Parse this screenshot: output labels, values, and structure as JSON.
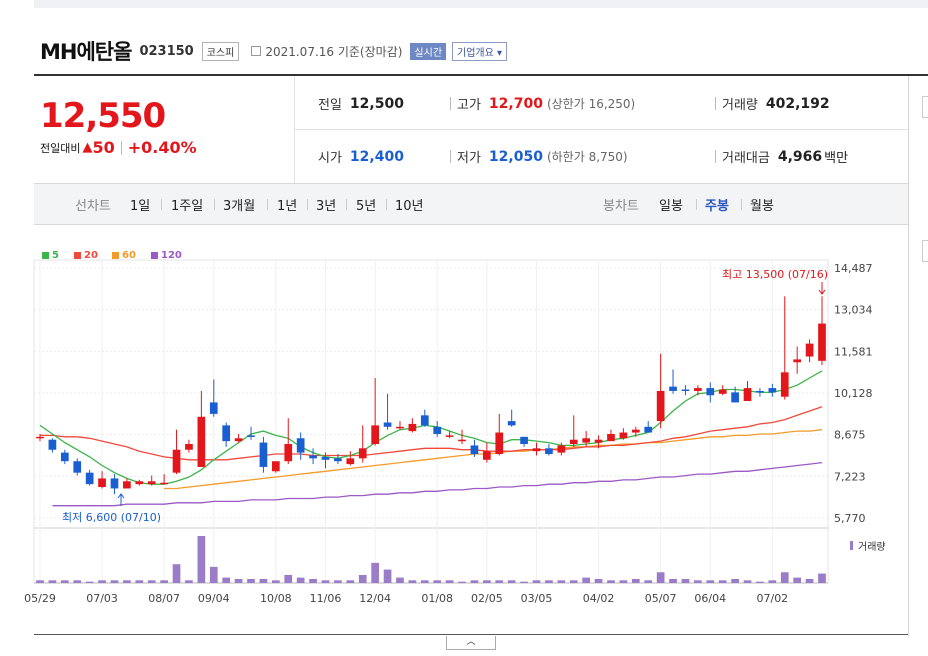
{
  "stock": {
    "name": "MH에탄올",
    "code": "023150",
    "market": "코스피",
    "date": "2021.07.16 기준(장마감)",
    "realtime_label": "실시간",
    "company_label": "기업개요"
  },
  "price": {
    "current": "12,550",
    "change_label": "전일대비",
    "change_arrow": "▲",
    "change_value": "50",
    "change_pct": "+0.40%"
  },
  "quote": {
    "prev_label": "전일",
    "prev_value": "12,500",
    "open_label": "시가",
    "open_value": "12,400",
    "high_label": "고가",
    "high_value": "12,700",
    "upper_limit": "(상한가 16,250)",
    "low_label": "저가",
    "low_value": "12,050",
    "lower_limit": "(하한가 8,750)",
    "volume_label": "거래량",
    "volume_value": "402,192",
    "amount_label": "거래대금",
    "amount_value": "4,966",
    "amount_unit": "백만"
  },
  "period_bar": {
    "line_label": "선차트",
    "line_items": [
      "1일",
      "1주일",
      "3개월",
      "1년",
      "3년",
      "5년",
      "10년"
    ],
    "candle_label": "봉차트",
    "candle_items": [
      "일봉",
      "주봉",
      "월봉"
    ],
    "active_candle": "주봉"
  },
  "colors": {
    "up": "#e3171b",
    "down": "#1a5fd1",
    "ma5": "#3ab54a",
    "ma20": "#ef4a3c",
    "ma60": "#f39b2b",
    "ma120": "#9b59c6",
    "volume": "#9b7cc9"
  },
  "chart_data": {
    "type": "candlestick",
    "ma_legend": [
      "5",
      "20",
      "60",
      "120"
    ],
    "y_ticks": [
      "14,487",
      "13,034",
      "11,581",
      "10,128",
      "8,675",
      "7,223",
      "5,770"
    ],
    "ylim": [
      5770,
      14487
    ],
    "x_ticks": [
      "05/29",
      "07/03",
      "08/07",
      "09/04",
      "10/08",
      "11/06",
      "12/04",
      "01/08",
      "02/05",
      "03/05",
      "04/02",
      "05/07",
      "06/04",
      "07/02"
    ],
    "max_annotation": "최고 13,500 (07/16)",
    "min_annotation": "최저 6,600 (07/10)",
    "volume_label": "거래량",
    "candles": [
      [
        8550,
        8700,
        8600,
        8450
      ],
      [
        8500,
        8550,
        8150,
        8050
      ],
      [
        8050,
        8150,
        7750,
        7650
      ],
      [
        7750,
        7850,
        7350,
        7250
      ],
      [
        7350,
        7450,
        6950,
        6900
      ],
      [
        6850,
        7400,
        7150,
        6800
      ],
      [
        7150,
        7300,
        6800,
        6600
      ],
      [
        6800,
        7150,
        7050,
        6800
      ],
      [
        6950,
        7100,
        7050,
        6900
      ],
      [
        6950,
        7250,
        7050,
        6900
      ],
      [
        7000,
        7300,
        7000,
        6950
      ],
      [
        7350,
        8850,
        8150,
        7300
      ],
      [
        8150,
        8500,
        8350,
        8050
      ],
      [
        7550,
        10200,
        9300,
        7550
      ],
      [
        9800,
        10600,
        9400,
        9300
      ],
      [
        9000,
        9100,
        8450,
        8250
      ],
      [
        8450,
        8700,
        8550,
        8400
      ],
      [
        8650,
        8950,
        8600,
        8500
      ],
      [
        8400,
        8600,
        7550,
        7350
      ],
      [
        7400,
        7700,
        7750,
        7350
      ],
      [
        7750,
        9250,
        8350,
        7650
      ],
      [
        8550,
        8750,
        8050,
        7800
      ],
      [
        7950,
        8200,
        7850,
        7650
      ],
      [
        7900,
        8050,
        7800,
        7500
      ],
      [
        7850,
        8000,
        7750,
        7650
      ],
      [
        7650,
        8100,
        7850,
        7600
      ],
      [
        7850,
        9000,
        8200,
        7700
      ],
      [
        8350,
        10650,
        9000,
        8300
      ],
      [
        9100,
        10100,
        8950,
        8850
      ],
      [
        8900,
        9150,
        8950,
        8850
      ],
      [
        8800,
        9250,
        9050,
        8750
      ],
      [
        9350,
        9550,
        9000,
        8950
      ],
      [
        8950,
        9150,
        8700,
        8600
      ],
      [
        8650,
        8800,
        8650,
        8550
      ],
      [
        8450,
        8850,
        8500,
        8350
      ],
      [
        8300,
        8500,
        8000,
        7900
      ],
      [
        7800,
        8400,
        8100,
        7700
      ],
      [
        8000,
        9400,
        8750,
        7950
      ],
      [
        9150,
        9550,
        9000,
        8950
      ],
      [
        8600,
        8600,
        8350,
        8250
      ],
      [
        8100,
        8400,
        8200,
        7950
      ],
      [
        8200,
        8350,
        8000,
        7950
      ],
      [
        8050,
        8400,
        8300,
        7950
      ],
      [
        8350,
        9350,
        8500,
        8250
      ],
      [
        8400,
        8800,
        8550,
        8250
      ],
      [
        8400,
        8650,
        8500,
        8200
      ],
      [
        8450,
        8850,
        8700,
        8450
      ],
      [
        8550,
        8900,
        8750,
        8500
      ],
      [
        8750,
        8950,
        8850,
        8600
      ],
      [
        8950,
        9150,
        8750,
        8750
      ],
      [
        9150,
        11500,
        10200,
        8900
      ],
      [
        10350,
        10950,
        10200,
        10100
      ],
      [
        10250,
        10400,
        10200,
        10050
      ],
      [
        10200,
        10400,
        10300,
        10050
      ],
      [
        10300,
        10500,
        10050,
        9800
      ],
      [
        10100,
        10400,
        10250,
        10050
      ],
      [
        10150,
        10350,
        9800,
        9800
      ],
      [
        9850,
        10550,
        10300,
        9850
      ],
      [
        10200,
        10300,
        10150,
        10000
      ],
      [
        10300,
        10450,
        10150,
        10000
      ],
      [
        10000,
        13500,
        10850,
        9900
      ],
      [
        11200,
        11750,
        11300,
        10800
      ],
      [
        11400,
        12000,
        11850,
        11200
      ],
      [
        11250,
        13500,
        12550,
        11100
      ]
    ],
    "ma5": [
      9000,
      8700,
      8400,
      8150,
      7900,
      7600,
      7350,
      7150,
      7000,
      6950,
      6950,
      7050,
      7200,
      7450,
      7800,
      8100,
      8400,
      8700,
      8800,
      8650,
      8550,
      8250,
      8050,
      7900,
      7850,
      7950,
      8100,
      8400,
      8650,
      8850,
      8900,
      9000,
      8950,
      8800,
      8650,
      8550,
      8400,
      8350,
      8500,
      8500,
      8450,
      8400,
      8300,
      8300,
      8350,
      8400,
      8500,
      8550,
      8650,
      8750,
      9100,
      9500,
      9850,
      10100,
      10150,
      10250,
      10250,
      10200,
      10150,
      10150,
      10250,
      10400,
      10650,
      10900
    ],
    "ma20": [
      8650,
      8650,
      8600,
      8600,
      8550,
      8450,
      8350,
      8250,
      8100,
      8000,
      7900,
      7850,
      7800,
      7800,
      7800,
      7800,
      7850,
      7900,
      7950,
      8000,
      8000,
      8000,
      7950,
      7950,
      7950,
      7950,
      7950,
      8000,
      8050,
      8100,
      8150,
      8200,
      8200,
      8200,
      8150,
      8150,
      8100,
      8100,
      8100,
      8150,
      8150,
      8150,
      8150,
      8200,
      8250,
      8250,
      8300,
      8300,
      8350,
      8400,
      8450,
      8550,
      8600,
      8700,
      8800,
      8850,
      8900,
      8950,
      9050,
      9100,
      9200,
      9350,
      9500,
      9650
    ],
    "ma60": [
      null,
      null,
      null,
      null,
      null,
      null,
      null,
      null,
      null,
      null,
      6800,
      6800,
      6850,
      6900,
      6950,
      7000,
      7050,
      7100,
      7150,
      7200,
      7250,
      7300,
      7350,
      7400,
      7450,
      7500,
      7550,
      7600,
      7650,
      7700,
      7750,
      7800,
      7850,
      7900,
      7950,
      8000,
      8000,
      8050,
      8100,
      8100,
      8150,
      8150,
      8200,
      8250,
      8250,
      8300,
      8300,
      8350,
      8350,
      8400,
      8400,
      8450,
      8500,
      8550,
      8600,
      8600,
      8650,
      8650,
      8700,
      8700,
      8750,
      8800,
      8800,
      8850
    ],
    "ma120": [
      null,
      6200,
      6200,
      6200,
      6200,
      6200,
      6200,
      6250,
      6250,
      6250,
      6250,
      6300,
      6300,
      6300,
      6350,
      6350,
      6350,
      6400,
      6400,
      6400,
      6450,
      6450,
      6450,
      6500,
      6500,
      6550,
      6550,
      6600,
      6600,
      6650,
      6650,
      6700,
      6700,
      6750,
      6750,
      6800,
      6800,
      6850,
      6850,
      6900,
      6900,
      6950,
      6950,
      7000,
      7000,
      7050,
      7050,
      7100,
      7100,
      7150,
      7200,
      7200,
      7250,
      7300,
      7300,
      7350,
      7400,
      7400,
      7450,
      7500,
      7550,
      7600,
      7650,
      7700
    ],
    "volume": [
      2,
      2,
      2,
      2,
      1,
      2,
      2,
      2,
      2,
      2,
      2,
      14,
      2,
      35,
      12,
      4,
      3,
      3,
      3,
      2,
      6,
      4,
      3,
      2,
      2,
      2,
      6,
      15,
      10,
      4,
      2,
      2,
      2,
      2,
      1,
      2,
      2,
      2,
      2,
      1,
      2,
      2,
      2,
      2,
      4,
      3,
      2,
      2,
      3,
      2,
      8,
      3,
      3,
      2,
      2,
      2,
      3,
      2,
      1,
      2,
      8,
      4,
      3,
      7
    ]
  }
}
